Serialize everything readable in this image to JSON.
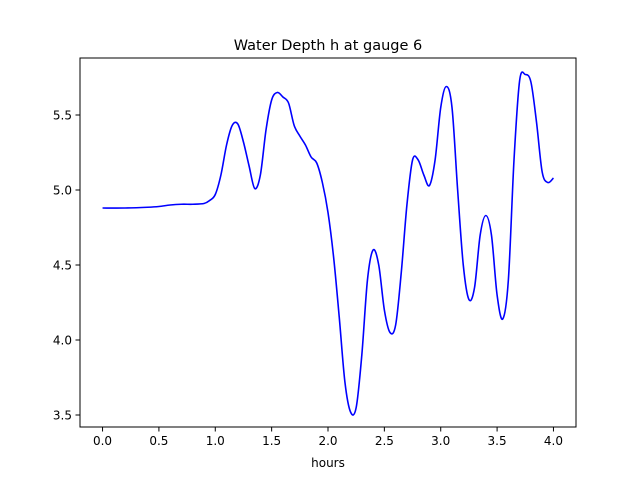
{
  "chart_data": {
    "type": "line",
    "title": "Water Depth h at gauge 6",
    "xlabel": "hours",
    "ylabel": "",
    "xlim": [
      -0.2,
      4.2
    ],
    "ylim": [
      3.42,
      5.88
    ],
    "xticks": [
      0.0,
      0.5,
      1.0,
      1.5,
      2.0,
      2.5,
      3.0,
      3.5,
      4.0
    ],
    "xtick_labels": [
      "0.0",
      "0.5",
      "1.0",
      "1.5",
      "2.0",
      "2.5",
      "3.0",
      "3.5",
      "4.0"
    ],
    "yticks": [
      3.5,
      4.0,
      4.5,
      5.0,
      5.5
    ],
    "ytick_labels": [
      "3.5",
      "4.0",
      "4.5",
      "5.0",
      "5.5"
    ],
    "grid": false,
    "series": [
      {
        "color": "#0000ff",
        "x": [
          0.0,
          0.2,
          0.4,
          0.5,
          0.6,
          0.7,
          0.8,
          0.9,
          0.95,
          1.0,
          1.05,
          1.1,
          1.15,
          1.2,
          1.25,
          1.3,
          1.35,
          1.4,
          1.45,
          1.5,
          1.55,
          1.6,
          1.65,
          1.7,
          1.75,
          1.8,
          1.85,
          1.9,
          1.95,
          2.0,
          2.05,
          2.1,
          2.15,
          2.2,
          2.25,
          2.3,
          2.35,
          2.4,
          2.45,
          2.5,
          2.55,
          2.6,
          2.65,
          2.7,
          2.75,
          2.8,
          2.85,
          2.9,
          2.95,
          3.0,
          3.05,
          3.1,
          3.15,
          3.2,
          3.25,
          3.3,
          3.35,
          3.4,
          3.45,
          3.5,
          3.55,
          3.6,
          3.65,
          3.7,
          3.75,
          3.8,
          3.85,
          3.9,
          3.95,
          4.0
        ],
        "y": [
          4.88,
          4.88,
          4.885,
          4.89,
          4.9,
          4.905,
          4.905,
          4.91,
          4.93,
          4.97,
          5.1,
          5.3,
          5.43,
          5.44,
          5.32,
          5.16,
          5.01,
          5.1,
          5.4,
          5.6,
          5.65,
          5.62,
          5.58,
          5.43,
          5.36,
          5.3,
          5.22,
          5.18,
          5.05,
          4.85,
          4.55,
          4.15,
          3.72,
          3.52,
          3.55,
          3.9,
          4.4,
          4.6,
          4.5,
          4.2,
          4.05,
          4.1,
          4.45,
          4.9,
          5.2,
          5.2,
          5.1,
          5.03,
          5.2,
          5.55,
          5.69,
          5.55,
          5.0,
          4.5,
          4.27,
          4.35,
          4.7,
          4.83,
          4.7,
          4.3,
          4.14,
          4.4,
          5.2,
          5.73,
          5.77,
          5.72,
          5.45,
          5.12,
          5.05,
          5.08
        ]
      }
    ]
  }
}
